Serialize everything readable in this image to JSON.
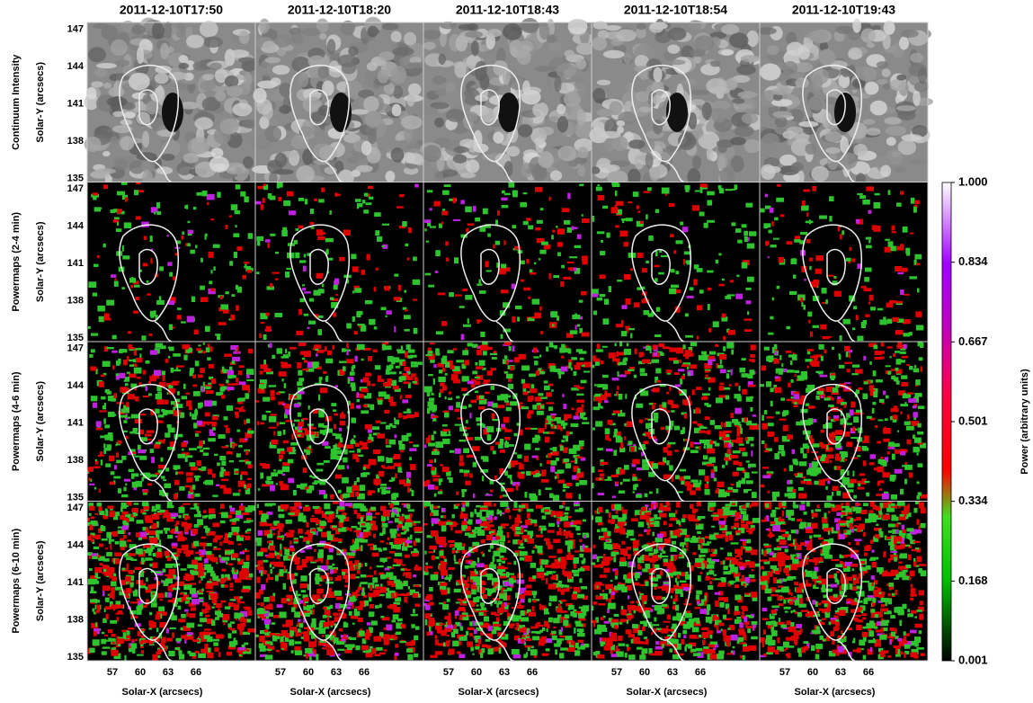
{
  "columns": [
    "2011-12-10T17:50",
    "2011-12-10T18:20",
    "2011-12-10T18:43",
    "2011-12-10T18:54",
    "2011-12-10T19:43"
  ],
  "rows": [
    {
      "label": "Continuum Intensity"
    },
    {
      "label": "Powermaps (2-4 min)"
    },
    {
      "label": "Powermaps (4-6 min)"
    },
    {
      "label": "Powermaps (6-10 min)"
    }
  ],
  "y_axis_label": "Solar-Y (arcsecs)",
  "y_ticks": [
    "135",
    "138",
    "141",
    "144",
    "147"
  ],
  "x_axis_label": "Solar-X (arcsecs)",
  "x_ticks": [
    "57",
    "60",
    "63",
    "66"
  ],
  "colorbar": {
    "label": "Power (arbitrary units)",
    "ticks": [
      "0.001",
      "0.168",
      "0.334",
      "0.501",
      "0.667",
      "0.834",
      "1.000"
    ]
  }
}
